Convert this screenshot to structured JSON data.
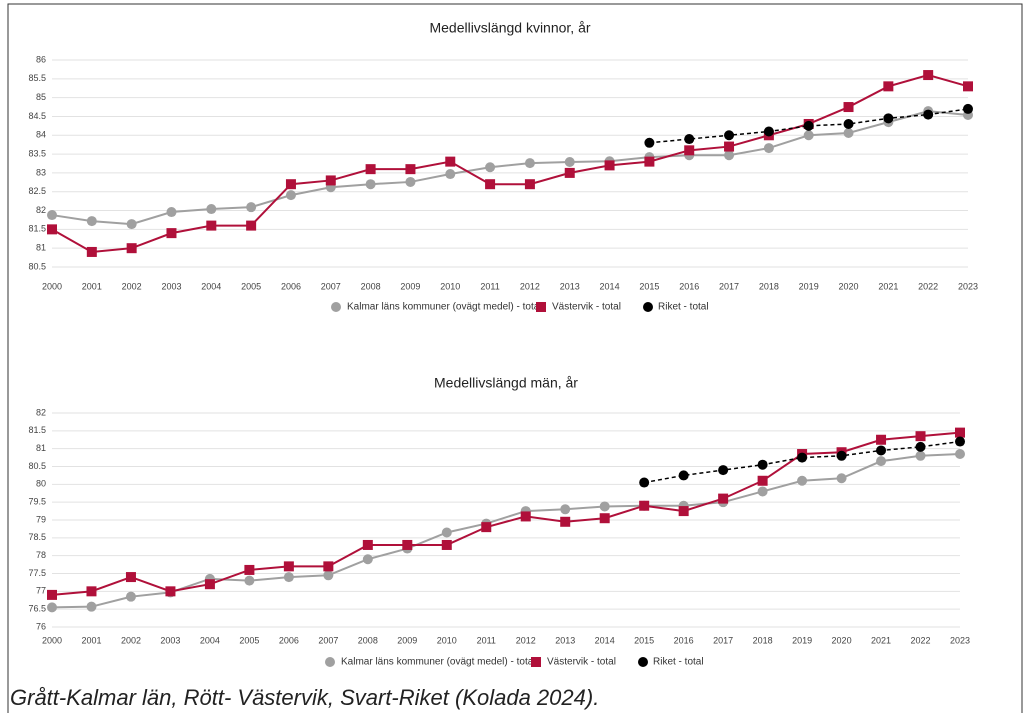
{
  "chart_data": [
    {
      "type": "line",
      "title": "Medellivslängd kvinnor, år",
      "categories": [
        "2000",
        "2001",
        "2002",
        "2003",
        "2004",
        "2005",
        "2006",
        "2007",
        "2008",
        "2009",
        "2010",
        "2011",
        "2012",
        "2013",
        "2014",
        "2015",
        "2016",
        "2017",
        "2018",
        "2019",
        "2020",
        "2021",
        "2022",
        "2023"
      ],
      "series": [
        {
          "name": "Kalmar läns kommuner (ovägt medel) - total",
          "color": "#a0a0a0",
          "marker": "circle",
          "values": [
            81.88,
            81.72,
            81.64,
            81.96,
            82.04,
            82.09,
            82.41,
            82.62,
            82.7,
            82.76,
            82.97,
            83.15,
            83.26,
            83.29,
            83.31,
            83.42,
            83.47,
            83.47,
            83.66,
            84.0,
            84.06,
            84.35,
            84.64,
            84.54
          ]
        },
        {
          "name": "Västervik - total",
          "color": "#b0103a",
          "marker": "square",
          "values": [
            81.5,
            80.9,
            81.0,
            81.4,
            81.6,
            81.6,
            82.7,
            82.8,
            83.1,
            83.1,
            83.3,
            82.7,
            82.7,
            83.0,
            83.2,
            83.3,
            83.6,
            83.7,
            84.0,
            84.3,
            84.75,
            85.3,
            85.6,
            85.3
          ]
        },
        {
          "name": "Riket - total",
          "color": "#000000",
          "marker": "circle",
          "dashed": true,
          "values": [
            null,
            null,
            null,
            null,
            null,
            null,
            null,
            null,
            null,
            null,
            null,
            null,
            null,
            null,
            null,
            83.8,
            83.9,
            84.0,
            84.1,
            84.25,
            84.3,
            84.45,
            84.55,
            84.7
          ]
        }
      ],
      "ylim": [
        80.5,
        86
      ],
      "yticks": [
        80.5,
        81,
        81.5,
        82,
        82.5,
        83,
        83.5,
        84,
        84.5,
        85,
        85.5,
        86
      ],
      "grid": true,
      "legend": "bottom"
    },
    {
      "type": "line",
      "title": "Medellivslängd män, år",
      "categories": [
        "2000",
        "2001",
        "2002",
        "2003",
        "2004",
        "2005",
        "2006",
        "2007",
        "2008",
        "2009",
        "2010",
        "2011",
        "2012",
        "2013",
        "2014",
        "2015",
        "2016",
        "2017",
        "2018",
        "2019",
        "2020",
        "2021",
        "2022",
        "2023"
      ],
      "series": [
        {
          "name": "Kalmar läns kommuner (ovägt medel) - total",
          "color": "#a0a0a0",
          "marker": "circle",
          "values": [
            76.55,
            76.57,
            76.85,
            76.97,
            77.35,
            77.3,
            77.4,
            77.45,
            77.9,
            78.2,
            78.65,
            78.9,
            79.25,
            79.3,
            79.38,
            79.4,
            79.4,
            79.5,
            79.8,
            80.1,
            80.17,
            80.65,
            80.8,
            80.85
          ]
        },
        {
          "name": "Västervik - total",
          "color": "#b0103a",
          "marker": "square",
          "values": [
            76.9,
            77.0,
            77.4,
            77.0,
            77.2,
            77.6,
            77.7,
            77.7,
            78.3,
            78.3,
            78.3,
            78.8,
            79.1,
            78.95,
            79.05,
            79.4,
            79.25,
            79.6,
            80.1,
            80.85,
            80.9,
            81.25,
            81.35,
            81.45
          ]
        },
        {
          "name": "Riket - total",
          "color": "#000000",
          "marker": "circle",
          "dashed": true,
          "values": [
            null,
            null,
            null,
            null,
            null,
            null,
            null,
            null,
            null,
            null,
            null,
            null,
            null,
            null,
            null,
            80.05,
            80.25,
            80.4,
            80.55,
            80.75,
            80.8,
            80.95,
            81.05,
            81.2
          ]
        }
      ],
      "ylim": [
        76,
        82
      ],
      "yticks": [
        76,
        76.5,
        77,
        77.5,
        78,
        78.5,
        79,
        79.5,
        80,
        80.5,
        81,
        81.5,
        82
      ],
      "grid": true,
      "legend": "bottom"
    }
  ],
  "caption": "Grått-Kalmar län, Rött- Västervik, Svart-Riket (Kolada 2024)."
}
